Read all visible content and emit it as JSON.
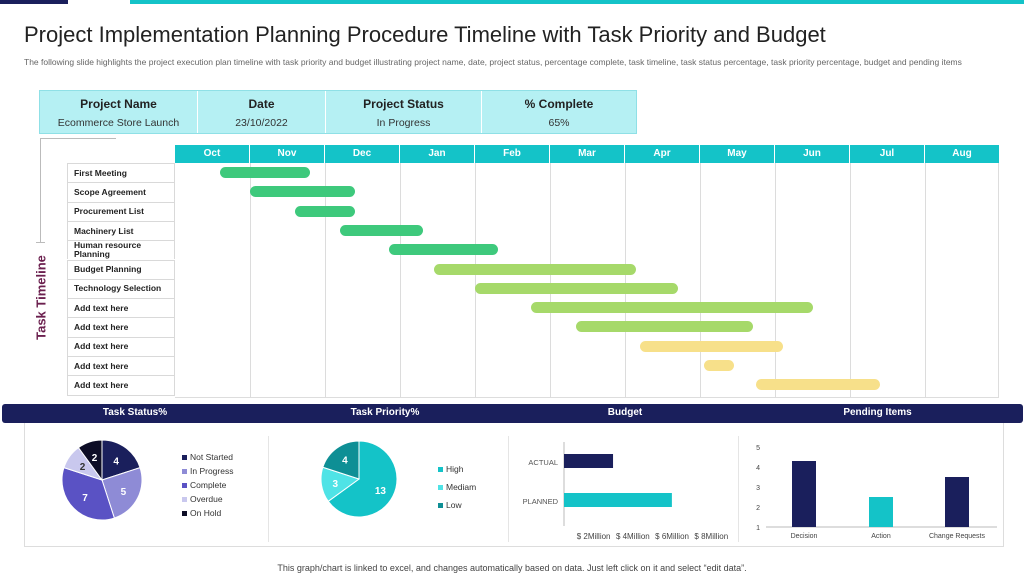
{
  "title": "Project Implementation Planning Procedure Timeline with Task Priority and Budget",
  "subtitle": "The following slide highlights the project execution plan timeline with task priority and budget illustrating project name, date, project status, percentage complete, task timeline, task status percentage, task priority percentage, budget and pending items",
  "info": {
    "project_name_label": "Project Name",
    "project_name": "Ecommerce Store Launch",
    "date_label": "Date",
    "date": "23/10/2022",
    "status_label": "Project Status",
    "status": "In Progress",
    "complete_label": "% Complete",
    "complete": "65%"
  },
  "timeline_label": "Task Timeline",
  "sections": {
    "task_status": "Task Status%",
    "task_priority": "Task Priority%",
    "budget": "Budget",
    "pending": "Pending Items"
  },
  "footer": "This graph/chart is linked to excel, and changes automatically based on data. Just left click on it and select “edit data”.",
  "colors": {
    "teal": "#14c3c8",
    "navy": "#1a1f5c",
    "green_dark": "#3ec97c",
    "green_light": "#a6d96a",
    "yellow": "#f7e08a"
  },
  "chart_data": [
    {
      "type": "gantt",
      "title": "Task Timeline",
      "months": [
        "Oct",
        "Nov",
        "Dec",
        "Jan",
        "Feb",
        "Mar",
        "Apr",
        "May",
        "Jun",
        "Jul",
        "Aug"
      ],
      "tasks": [
        {
          "name": "First Meeting",
          "start": 0.6,
          "end": 1.8,
          "color": "#3ec97c"
        },
        {
          "name": "Scope Agreement",
          "start": 1.0,
          "end": 2.4,
          "color": "#3ec97c"
        },
        {
          "name": "Procurement List",
          "start": 1.6,
          "end": 2.4,
          "color": "#3ec97c"
        },
        {
          "name": "Machinery List",
          "start": 2.2,
          "end": 3.3,
          "color": "#3ec97c"
        },
        {
          "name": "Human resource Planning",
          "start": 2.85,
          "end": 4.3,
          "color": "#3ec97c"
        },
        {
          "name": "Budget Planning",
          "start": 3.45,
          "end": 6.15,
          "color": "#a6d96a"
        },
        {
          "name": "Technology Selection",
          "start": 4.0,
          "end": 6.7,
          "color": "#a6d96a"
        },
        {
          "name": "Add text here",
          "start": 4.75,
          "end": 8.5,
          "color": "#a6d96a"
        },
        {
          "name": "Add text here",
          "start": 5.35,
          "end": 7.7,
          "color": "#a6d96a"
        },
        {
          "name": "Add text here",
          "start": 6.2,
          "end": 8.1,
          "color": "#f7e08a"
        },
        {
          "name": "Add text here",
          "start": 7.05,
          "end": 7.45,
          "color": "#f7e08a"
        },
        {
          "name": "Add text here",
          "start": 7.75,
          "end": 9.4,
          "color": "#f7e08a"
        }
      ]
    },
    {
      "type": "pie",
      "title": "Task Status%",
      "labels": [
        "Not Started",
        "In Progress",
        "Complete",
        "Overdue",
        "On Hold"
      ],
      "values": [
        4,
        5,
        7,
        2,
        2
      ],
      "colors": [
        "#1a1f5c",
        "#8e8bd6",
        "#5a52c4",
        "#c9c8ee",
        "#0d0d26"
      ]
    },
    {
      "type": "pie",
      "title": "Task Priority%",
      "labels": [
        "High",
        "Mediam",
        "Low"
      ],
      "values": [
        13,
        3,
        4
      ],
      "colors": [
        "#14c3c8",
        "#4fe3e6",
        "#0e8f95"
      ]
    },
    {
      "type": "bar",
      "orientation": "horizontal",
      "title": "Budget",
      "categories": [
        "ACTUAL",
        "PLANNED"
      ],
      "values": [
        3.5,
        6.5
      ],
      "xticks": [
        "$ 2Million",
        "$ 4Million",
        "$ 6Million",
        "$ 8Million"
      ],
      "xlim": [
        1,
        8.8
      ],
      "colors": [
        "#1a1f5c",
        "#14c3c8"
      ]
    },
    {
      "type": "bar",
      "title": "Pending Items",
      "categories": [
        "Decision",
        "Action",
        "Change Requests"
      ],
      "values": [
        4.3,
        2.5,
        3.5
      ],
      "ylim": [
        1,
        5
      ],
      "yticks": [
        "1",
        "2",
        "3",
        "4",
        "5"
      ],
      "colors": [
        "#1a1f5c",
        "#14c3c8",
        "#1a1f5c"
      ]
    }
  ]
}
